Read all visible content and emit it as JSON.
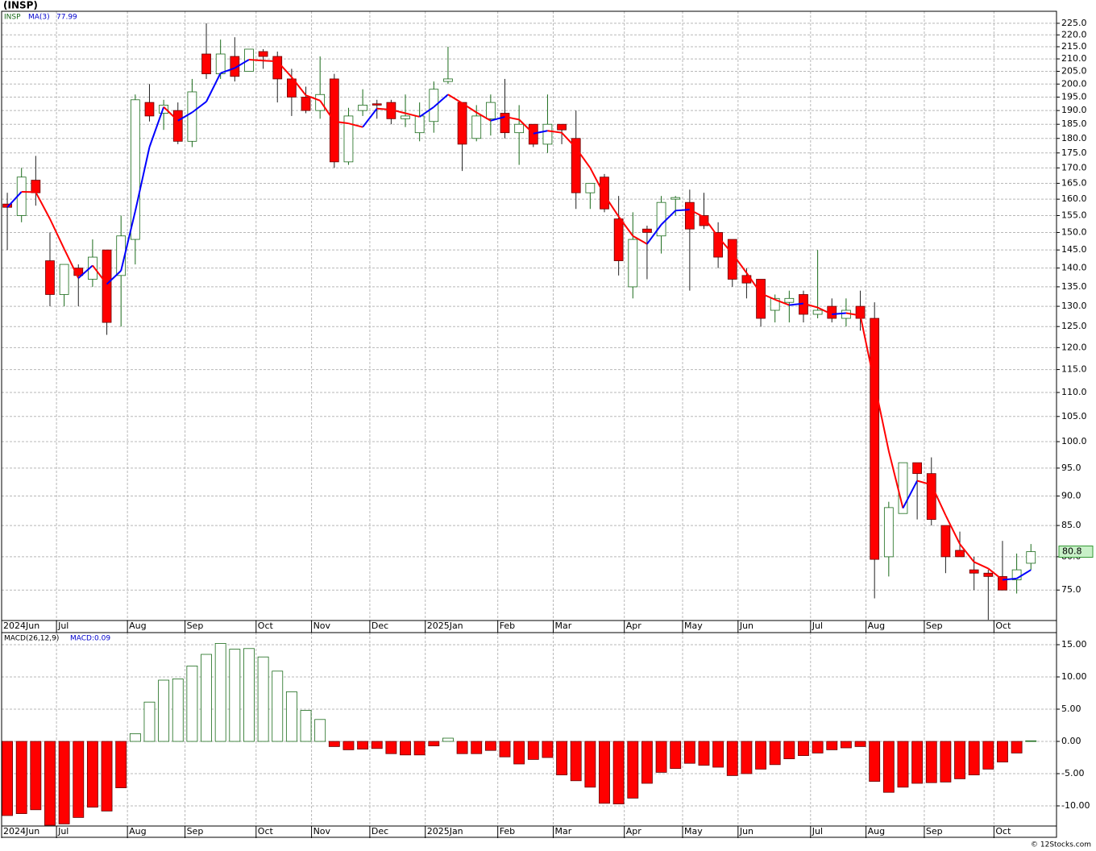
{
  "chart_data": [
    {
      "type": "candlestick",
      "title": "(INSP)",
      "symbol": "INSP",
      "ma_name": "MA(3)",
      "log_scale": true,
      "grid": true,
      "up_color": "#1a6b1a",
      "down_color": "#ff0000",
      "ma_up_color": "#0000ff",
      "ma_down_color": "#ff0000",
      "last_label_color": "#c8f0c8",
      "xlim": [
        -0.4,
        73.8
      ],
      "xticks": [
        {
          "value": -0.4,
          "label": "2024Jun"
        },
        {
          "value": 3.46,
          "label": "Jul"
        },
        {
          "value": 8.45,
          "label": "Aug"
        },
        {
          "value": 12.5,
          "label": "Sep"
        },
        {
          "value": 17.5,
          "label": "Oct"
        },
        {
          "value": 21.4,
          "label": "Nov"
        },
        {
          "value": 25.5,
          "label": "Dec"
        },
        {
          "value": 29.4,
          "label": "2025Jan"
        },
        {
          "value": 34.5,
          "label": "Feb"
        },
        {
          "value": 38.4,
          "label": "Mar"
        },
        {
          "value": 43.4,
          "label": "Apr"
        },
        {
          "value": 47.5,
          "label": "May"
        },
        {
          "value": 51.4,
          "label": "Jun"
        },
        {
          "value": 56.5,
          "label": "Jul"
        },
        {
          "value": 60.4,
          "label": "Aug"
        },
        {
          "value": 64.5,
          "label": "Sep"
        },
        {
          "value": 69.4,
          "label": "Oct"
        }
      ],
      "ylim": [
        70.7,
        230.3
      ],
      "yticks": [
        {
          "value": 75,
          "label": "75.0"
        },
        {
          "value": 80,
          "label": "80.0"
        },
        {
          "value": 85,
          "label": "85.0"
        },
        {
          "value": 90,
          "label": "90.0"
        },
        {
          "value": 95,
          "label": "95.0"
        },
        {
          "value": 100,
          "label": "100.0"
        },
        {
          "value": 105,
          "label": "105.0"
        },
        {
          "value": 110,
          "label": "110.0"
        },
        {
          "value": 115,
          "label": "115.0"
        },
        {
          "value": 120,
          "label": "120.0"
        },
        {
          "value": 125,
          "label": "125.0"
        },
        {
          "value": 130,
          "label": "130.0"
        },
        {
          "value": 135,
          "label": "135.0"
        },
        {
          "value": 140,
          "label": "140.0"
        },
        {
          "value": 145,
          "label": "145.0"
        },
        {
          "value": 150,
          "label": "150.0"
        },
        {
          "value": 155,
          "label": "155.0"
        },
        {
          "value": 160,
          "label": "160.0"
        },
        {
          "value": 165,
          "label": "165.0"
        },
        {
          "value": 170,
          "label": "170.0"
        },
        {
          "value": 175,
          "label": "175.0"
        },
        {
          "value": 180,
          "label": "180.0"
        },
        {
          "value": 185,
          "label": "185.0"
        },
        {
          "value": 190,
          "label": "190.0"
        },
        {
          "value": 195,
          "label": "195.0"
        },
        {
          "value": 200,
          "label": "200.0"
        },
        {
          "value": 205,
          "label": "205.0"
        },
        {
          "value": 210,
          "label": "210.0"
        },
        {
          "value": 215,
          "label": "215.0"
        },
        {
          "value": 220,
          "label": "220.0"
        },
        {
          "value": 225,
          "label": "225.0"
        }
      ],
      "open": [
        158.5,
        155,
        166,
        142,
        133,
        140,
        137,
        145,
        138,
        148,
        193,
        189,
        190,
        179,
        212,
        204,
        211,
        205,
        213,
        211,
        202,
        195,
        190,
        202,
        172,
        190,
        192.5,
        193,
        187,
        182,
        186,
        201,
        193,
        180,
        187,
        189,
        182,
        185,
        178,
        185,
        180,
        162,
        167,
        154,
        135,
        151,
        149,
        160,
        159,
        155,
        150,
        148,
        138,
        137,
        129,
        131,
        133,
        128,
        130,
        127,
        130,
        127,
        80,
        87,
        96,
        94,
        85,
        81,
        78,
        77.5,
        77,
        76.5,
        79
      ],
      "high": [
        162,
        170,
        174,
        150,
        141,
        141,
        148,
        145,
        155,
        196,
        200,
        194,
        193,
        202,
        225,
        218,
        219,
        214,
        214,
        213,
        206,
        199,
        211,
        204,
        191,
        198,
        194,
        194,
        196,
        193,
        201,
        215,
        193,
        192,
        196,
        202,
        192,
        185,
        196,
        185,
        190,
        165,
        168,
        161,
        156,
        152,
        161,
        161,
        163,
        162,
        153,
        148,
        140,
        137,
        133,
        134,
        134,
        145,
        132,
        132,
        134,
        131,
        89,
        96,
        96,
        97,
        85,
        84,
        80,
        78,
        82.5,
        80.5,
        82
      ],
      "low": [
        145,
        153,
        158,
        130,
        130,
        130,
        135,
        123,
        125,
        141,
        186,
        183,
        178,
        177,
        202,
        202,
        201,
        205,
        206,
        193,
        188,
        189,
        187,
        170,
        171,
        188,
        187,
        185,
        184,
        179,
        182,
        200,
        169,
        179,
        181,
        180,
        171,
        177,
        175,
        178,
        157,
        157,
        156,
        138,
        132,
        137,
        144,
        155,
        134,
        151,
        140,
        135,
        132,
        125,
        126,
        126,
        126,
        127,
        126,
        125,
        124,
        73.8,
        77,
        87,
        86,
        85,
        77.5,
        80,
        75,
        70.8,
        75,
        74.5,
        78
      ],
      "close": [
        157.5,
        167,
        162,
        133,
        141,
        138,
        143,
        126,
        149,
        194,
        188,
        192,
        179,
        197,
        204,
        212,
        203,
        214,
        211,
        202,
        195,
        190,
        196,
        172,
        188,
        192,
        192,
        187,
        188,
        188,
        198,
        202,
        178,
        188,
        193,
        182,
        185,
        178,
        185,
        183,
        162,
        165,
        157,
        142,
        148,
        150,
        159,
        160.5,
        151,
        152,
        143,
        137,
        136,
        127,
        132,
        132,
        128,
        129,
        127,
        129,
        127,
        79.6,
        88,
        96,
        94,
        86,
        80,
        80,
        77.5,
        77,
        75,
        78,
        80.8
      ],
      "ma": [
        157.5,
        162.3,
        162.2,
        154,
        145.3,
        137.3,
        140.7,
        135.7,
        139.3,
        156.3,
        177,
        191.3,
        186.3,
        189.3,
        193.3,
        204.3,
        206.3,
        209.7,
        209.3,
        209,
        202.7,
        195.7,
        193.7,
        186,
        185.3,
        184,
        190.7,
        190.3,
        189,
        187.7,
        191.3,
        196,
        192.7,
        189.3,
        186.3,
        187.7,
        186.7,
        181.7,
        182.7,
        182,
        176.7,
        170,
        161.3,
        154.7,
        149,
        146.7,
        152.3,
        156.5,
        156.8,
        154.5,
        148.7,
        144,
        138.7,
        133.3,
        131.7,
        130.3,
        130.7,
        129.7,
        128,
        128.3,
        127.7,
        111.9,
        98.2,
        87.9,
        92.7,
        92,
        86.7,
        82,
        79.2,
        78.2,
        76.5,
        76.7,
        77.99
      ]
    },
    {
      "type": "histogram",
      "name": "MACD(26,12,9)",
      "value_name": "MACD:",
      "grid": true,
      "up_color": "#1a6b1a",
      "down_color": "#ff0000",
      "ylim": [
        -13.125,
        16.875
      ],
      "yticks": [
        {
          "value": 15,
          "label": "15.00"
        },
        {
          "value": 10,
          "label": "10.00"
        },
        {
          "value": 5,
          "label": "5.00"
        },
        {
          "value": 0,
          "label": "0.00"
        },
        {
          "value": -5,
          "label": "-5.00"
        },
        {
          "value": -10,
          "label": "-10.00"
        }
      ],
      "values": [
        -11.5,
        -11.2,
        -10.6,
        -13,
        -12.8,
        -11.8,
        -10.2,
        -10.8,
        -7.2,
        1.2,
        6.1,
        9.5,
        9.7,
        11.7,
        13.5,
        15.2,
        14.3,
        14.4,
        13.1,
        10.9,
        7.7,
        4.8,
        3.4,
        -0.8,
        -1.3,
        -1.2,
        -1.1,
        -1.9,
        -2.1,
        -2.1,
        -0.7,
        0.5,
        -1.9,
        -1.9,
        -1.4,
        -2.4,
        -3.5,
        -2.8,
        -2.5,
        -5.2,
        -6.1,
        -7.1,
        -9.6,
        -9.7,
        -8.8,
        -6.5,
        -4.8,
        -4.2,
        -3.4,
        -3.7,
        -4.0,
        -5.3,
        -5.0,
        -4.3,
        -3.6,
        -2.7,
        -2.2,
        -1.8,
        -1.3,
        -1.0,
        -0.8,
        -6.2,
        -7.9,
        -7.1,
        -6.5,
        -6.4,
        -6.3,
        -5.8,
        -5.2,
        -4.3,
        -3.2,
        -1.8,
        0.09
      ]
    },
    {
      "type": "footer",
      "text": "© 12Stocks.com"
    }
  ]
}
